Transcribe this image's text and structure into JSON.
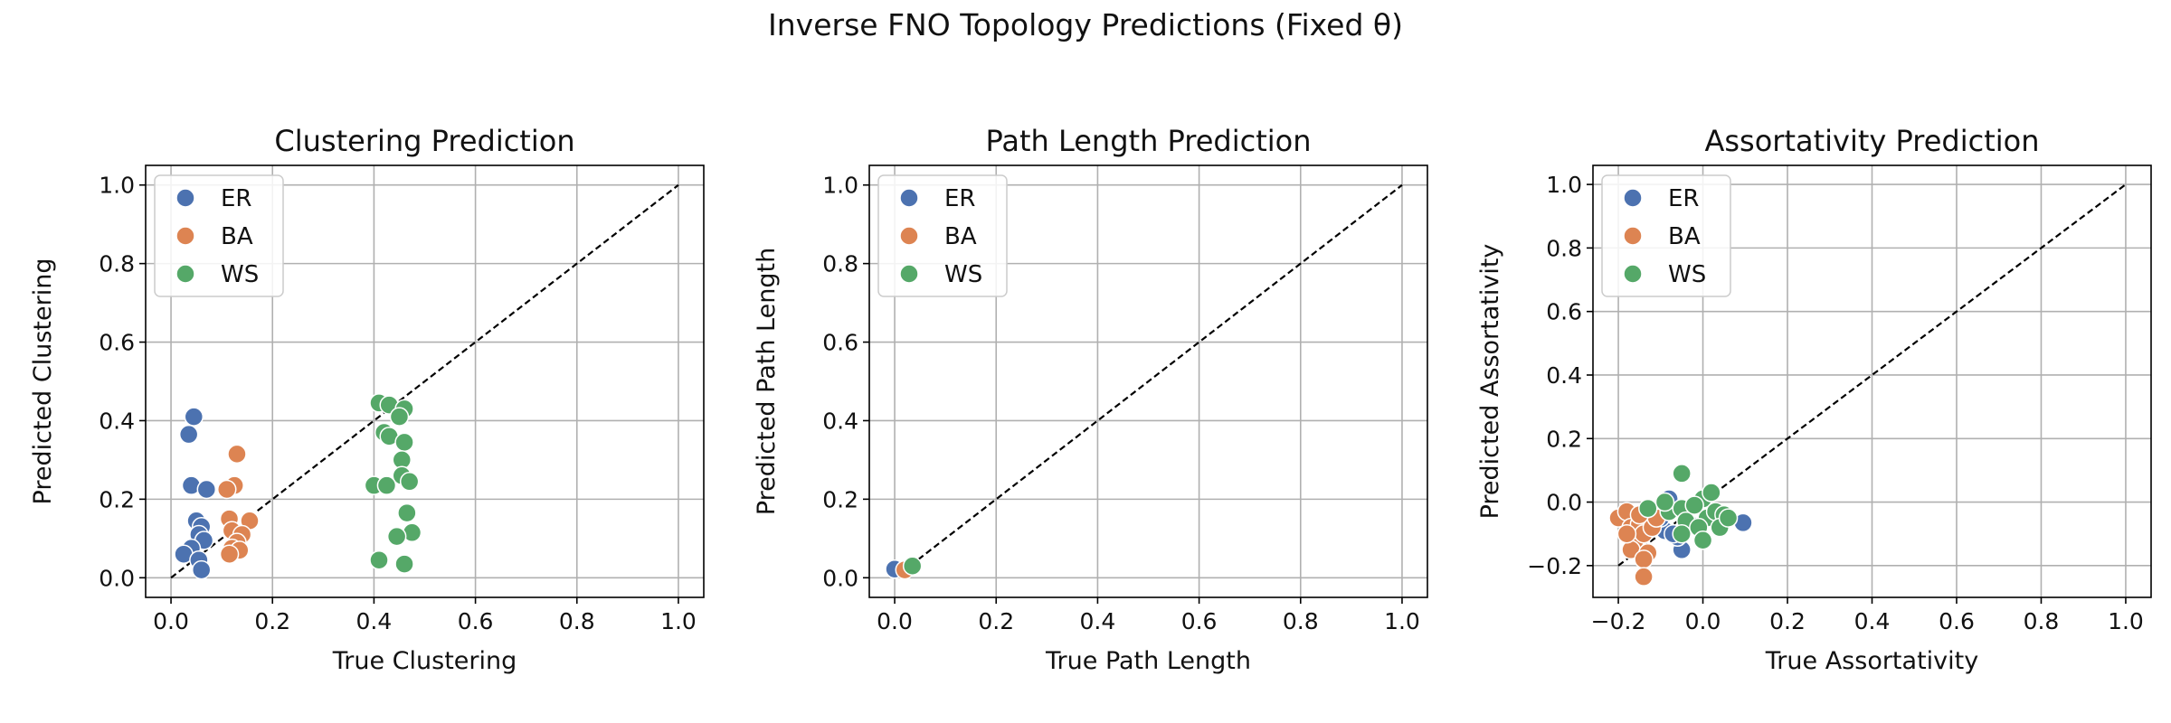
{
  "suptitle": "Inverse FNO Topology Predictions (Fixed θ)",
  "colors": {
    "ER": "#4c72b0",
    "BA": "#dd8452",
    "WS": "#55a868",
    "identity": "#000000",
    "grid": "#b0b0b0"
  },
  "legend_placement": "upper-left",
  "grid": true,
  "chart_data": [
    {
      "type": "scatter",
      "title": "Clustering Prediction",
      "xlabel": "True Clustering",
      "ylabel": "Predicted Clustering",
      "xlim": [
        -0.05,
        1.05
      ],
      "ylim": [
        -0.05,
        1.05
      ],
      "xticks": [
        0.0,
        0.2,
        0.4,
        0.6,
        0.8,
        1.0
      ],
      "yticks": [
        0.0,
        0.2,
        0.4,
        0.6,
        0.8,
        1.0
      ],
      "xtick_labels": [
        "0.0",
        "0.2",
        "0.4",
        "0.6",
        "0.8",
        "1.0"
      ],
      "ytick_labels": [
        "0.0",
        "0.2",
        "0.4",
        "0.6",
        "0.8",
        "1.0"
      ],
      "identity_line": [
        0,
        1
      ],
      "series": [
        {
          "name": "ER",
          "points": [
            [
              0.045,
              0.41
            ],
            [
              0.035,
              0.365
            ],
            [
              0.04,
              0.235
            ],
            [
              0.07,
              0.225
            ],
            [
              0.05,
              0.145
            ],
            [
              0.06,
              0.13
            ],
            [
              0.055,
              0.11
            ],
            [
              0.065,
              0.095
            ],
            [
              0.04,
              0.075
            ],
            [
              0.025,
              0.06
            ],
            [
              0.055,
              0.045
            ],
            [
              0.06,
              0.02
            ]
          ]
        },
        {
          "name": "BA",
          "points": [
            [
              0.13,
              0.315
            ],
            [
              0.125,
              0.235
            ],
            [
              0.11,
              0.225
            ],
            [
              0.115,
              0.15
            ],
            [
              0.155,
              0.145
            ],
            [
              0.12,
              0.12
            ],
            [
              0.14,
              0.11
            ],
            [
              0.13,
              0.09
            ],
            [
              0.12,
              0.075
            ],
            [
              0.135,
              0.07
            ],
            [
              0.115,
              0.06
            ]
          ]
        },
        {
          "name": "WS",
          "points": [
            [
              0.41,
              0.445
            ],
            [
              0.43,
              0.44
            ],
            [
              0.46,
              0.43
            ],
            [
              0.45,
              0.41
            ],
            [
              0.42,
              0.37
            ],
            [
              0.43,
              0.36
            ],
            [
              0.46,
              0.345
            ],
            [
              0.455,
              0.3
            ],
            [
              0.455,
              0.26
            ],
            [
              0.47,
              0.245
            ],
            [
              0.4,
              0.235
            ],
            [
              0.425,
              0.235
            ],
            [
              0.465,
              0.165
            ],
            [
              0.475,
              0.115
            ],
            [
              0.445,
              0.105
            ],
            [
              0.41,
              0.045
            ],
            [
              0.46,
              0.035
            ]
          ]
        }
      ]
    },
    {
      "type": "scatter",
      "title": "Path Length Prediction",
      "xlabel": "True Path Length",
      "ylabel": "Predicted Path Length",
      "xlim": [
        -0.05,
        1.05
      ],
      "ylim": [
        -0.05,
        1.05
      ],
      "xticks": [
        0.0,
        0.2,
        0.4,
        0.6,
        0.8,
        1.0
      ],
      "yticks": [
        0.0,
        0.2,
        0.4,
        0.6,
        0.8,
        1.0
      ],
      "xtick_labels": [
        "0.0",
        "0.2",
        "0.4",
        "0.6",
        "0.8",
        "1.0"
      ],
      "ytick_labels": [
        "0.0",
        "0.2",
        "0.4",
        "0.6",
        "0.8",
        "1.0"
      ],
      "identity_line": [
        0,
        1
      ],
      "series": [
        {
          "name": "ER",
          "points": [
            [
              0.0,
              0.022
            ]
          ]
        },
        {
          "name": "BA",
          "points": [
            [
              0.02,
              0.02
            ]
          ]
        },
        {
          "name": "WS",
          "points": [
            [
              0.035,
              0.03
            ]
          ]
        }
      ]
    },
    {
      "type": "scatter",
      "title": "Assortativity Prediction",
      "xlabel": "True Assortativity",
      "ylabel": "Predicted Assortativity",
      "xlim": [
        -0.26,
        1.06
      ],
      "ylim": [
        -0.3,
        1.06
      ],
      "xticks": [
        -0.2,
        0.0,
        0.2,
        0.4,
        0.6,
        0.8,
        1.0
      ],
      "yticks": [
        -0.2,
        0.0,
        0.2,
        0.4,
        0.6,
        0.8,
        1.0
      ],
      "xtick_labels": [
        "−0.2",
        "0.0",
        "0.2",
        "0.4",
        "0.6",
        "0.8",
        "1.0"
      ],
      "ytick_labels": [
        "−0.2",
        "0.0",
        "0.2",
        "0.4",
        "0.6",
        "0.8",
        "1.0"
      ],
      "identity_line": [
        -0.2,
        1
      ],
      "series": [
        {
          "name": "ER",
          "points": [
            [
              -0.08,
              0.01
            ],
            [
              -0.09,
              -0.09
            ],
            [
              -0.05,
              -0.15
            ],
            [
              0.095,
              -0.065
            ],
            [
              -0.06,
              -0.11
            ],
            [
              -0.03,
              -0.07
            ],
            [
              -0.1,
              -0.05
            ],
            [
              -0.07,
              -0.1
            ]
          ]
        },
        {
          "name": "BA",
          "points": [
            [
              -0.2,
              -0.05
            ],
            [
              -0.18,
              -0.03
            ],
            [
              -0.17,
              -0.08
            ],
            [
              -0.16,
              -0.12
            ],
            [
              -0.15,
              -0.07
            ],
            [
              -0.17,
              -0.15
            ],
            [
              -0.14,
              -0.1
            ],
            [
              -0.13,
              -0.16
            ],
            [
              -0.14,
              -0.18
            ],
            [
              -0.14,
              -0.235
            ],
            [
              -0.12,
              -0.08
            ],
            [
              -0.11,
              -0.05
            ],
            [
              -0.18,
              -0.1
            ],
            [
              -0.15,
              -0.04
            ]
          ]
        },
        {
          "name": "WS",
          "points": [
            [
              -0.05,
              0.09
            ],
            [
              -0.13,
              -0.02
            ],
            [
              -0.08,
              -0.03
            ],
            [
              -0.05,
              -0.02
            ],
            [
              -0.04,
              -0.06
            ],
            [
              -0.05,
              -0.1
            ],
            [
              0.0,
              0.01
            ],
            [
              0.02,
              0.03
            ],
            [
              0.01,
              -0.05
            ],
            [
              0.03,
              -0.03
            ],
            [
              0.05,
              -0.04
            ],
            [
              -0.01,
              -0.08
            ],
            [
              0.0,
              -0.12
            ],
            [
              0.04,
              -0.08
            ],
            [
              0.06,
              -0.05
            ],
            [
              -0.02,
              -0.01
            ],
            [
              -0.09,
              0.0
            ]
          ]
        }
      ]
    }
  ]
}
